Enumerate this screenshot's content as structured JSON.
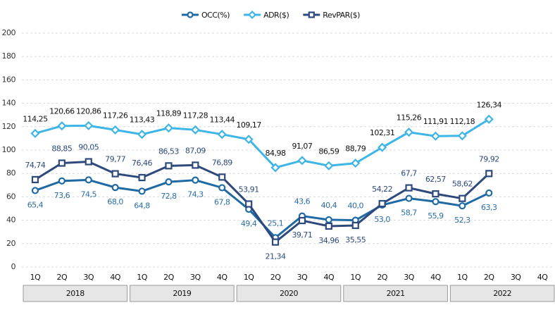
{
  "chart_data": {
    "type": "line",
    "categories": [
      "1Q",
      "2Q",
      "3Q",
      "4Q",
      "1Q",
      "2Q",
      "3Q",
      "4Q",
      "1Q",
      "2Q",
      "3Q",
      "4Q",
      "1Q",
      "2Q",
      "3Q",
      "4Q",
      "1Q",
      "2Q",
      "3Q",
      "4Q"
    ],
    "category_groups": [
      "2018",
      "2019",
      "2020",
      "2021",
      "2022"
    ],
    "ylim": [
      0,
      200
    ],
    "yticks": [
      0,
      20,
      40,
      60,
      80,
      100,
      120,
      140,
      160,
      180,
      200
    ],
    "grid": true,
    "legend": "top",
    "series": [
      {
        "name": "OCC(%)",
        "color": "#1f6aa5",
        "label_color": "#2a6ea8",
        "marker": "circle",
        "values": [
          65.4,
          73.6,
          74.5,
          68.0,
          64.8,
          72.8,
          74.3,
          67.8,
          49.4,
          25.1,
          43.6,
          40.4,
          40.0,
          53.0,
          58.7,
          55.9,
          52.3,
          63.3,
          null,
          null
        ],
        "value_labels": [
          "65,4",
          "73,6",
          "74,5",
          "68,0",
          "64,8",
          "72,8",
          "74,3",
          "67,8",
          "49,4",
          "25,1",
          "43,6",
          "40,4",
          "40,0",
          "53,0",
          "58,7",
          "55,9",
          "52,3",
          "63,3",
          null,
          null
        ]
      },
      {
        "name": "ADR($)",
        "color": "#3db5e7",
        "label_color": "#111111",
        "marker": "diamond",
        "values": [
          114.25,
          120.66,
          120.86,
          117.26,
          113.43,
          118.89,
          117.28,
          113.44,
          109.17,
          84.98,
          91.07,
          86.59,
          88.79,
          102.31,
          115.26,
          111.91,
          112.18,
          126.34,
          null,
          null
        ],
        "value_labels": [
          "114,25",
          "120,66",
          "120,86",
          "117,26",
          "113,43",
          "118,89",
          "117,28",
          "113,44",
          "109,17",
          "84,98",
          "91,07",
          "86,59",
          "88,79",
          "102,31",
          "115,26",
          "111,91",
          "112,18",
          "126,34",
          null,
          null
        ]
      },
      {
        "name": "RevPAR($)",
        "color": "#2e4a7d",
        "label_color": "#2e4a7d",
        "marker": "square",
        "values": [
          74.74,
          88.85,
          90.05,
          79.77,
          76.46,
          86.53,
          87.09,
          76.89,
          53.91,
          21.34,
          39.71,
          34.96,
          35.55,
          54.22,
          67.7,
          62.57,
          58.62,
          79.92,
          null,
          null
        ],
        "value_labels": [
          "74,74",
          "88,85",
          "90,05",
          "79,77",
          "76,46",
          "86,53",
          "87,09",
          "76,89",
          "53,91",
          "21,34",
          "39,71",
          "34,96",
          "35,55",
          "54,22",
          "67,7",
          "62,57",
          "58,62",
          "79,92",
          null,
          null
        ]
      }
    ]
  }
}
